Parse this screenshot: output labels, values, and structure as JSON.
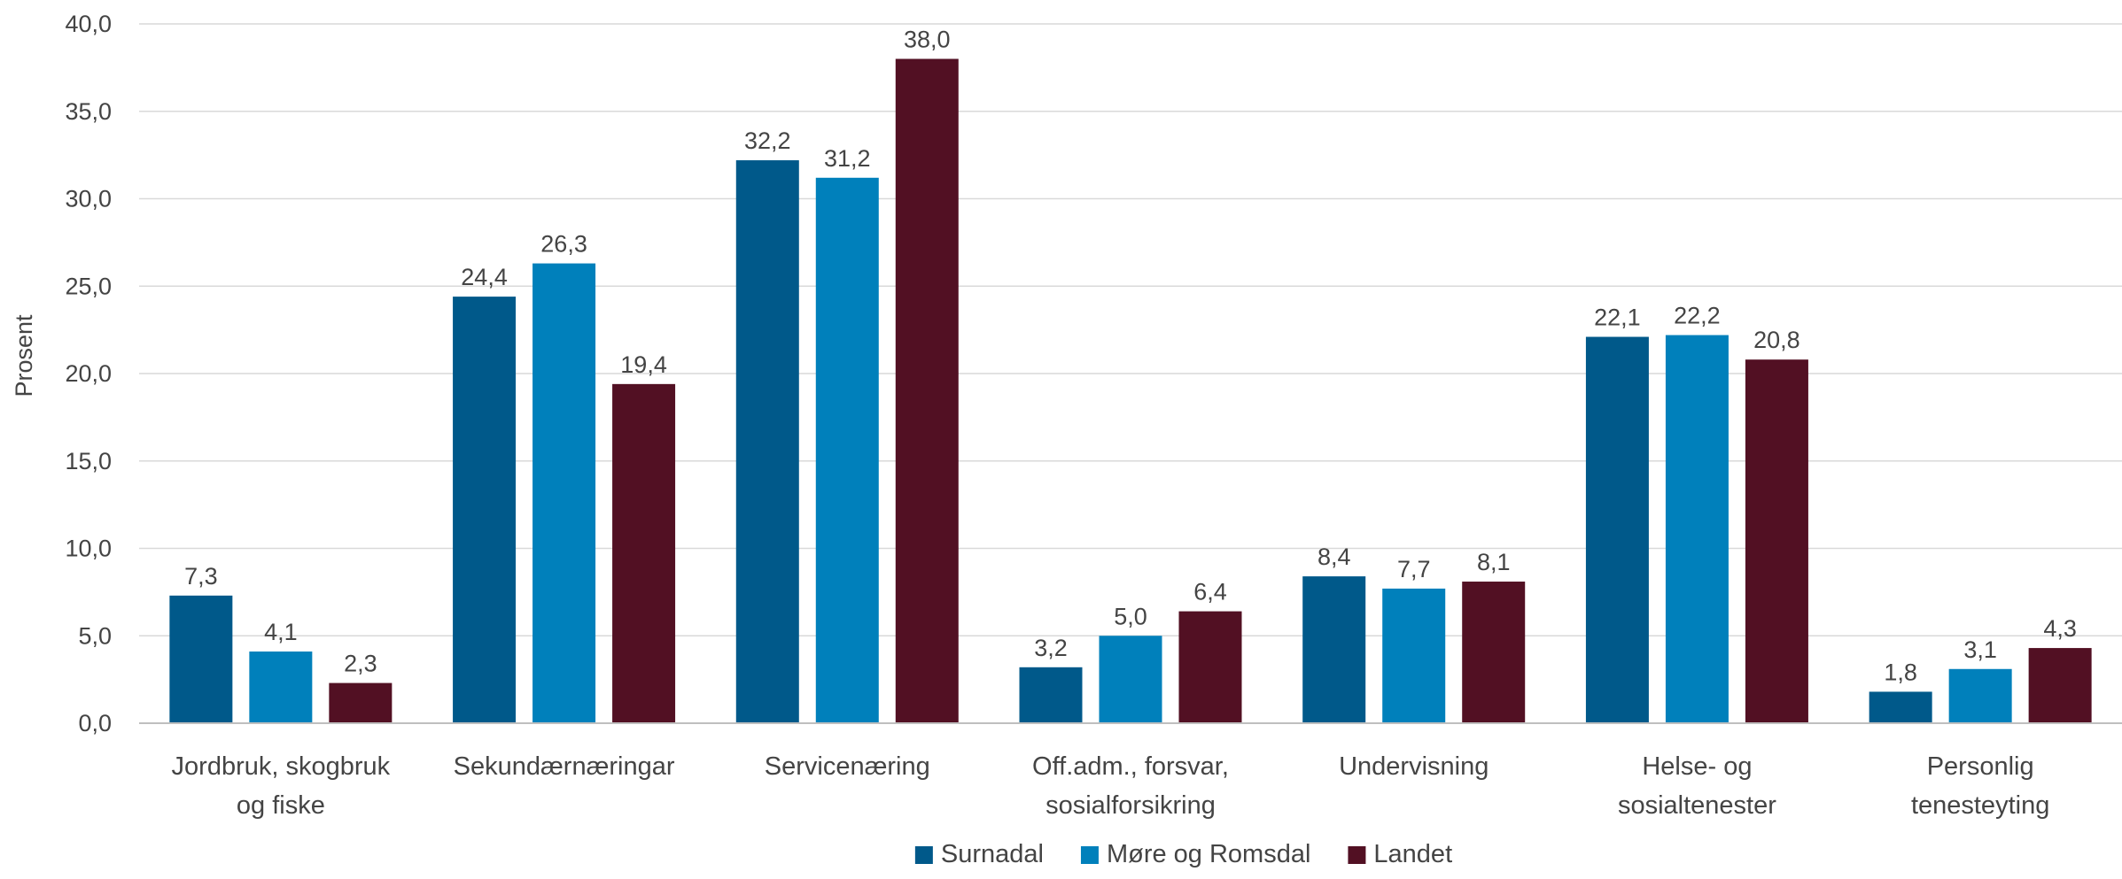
{
  "chart_data": {
    "type": "bar",
    "title": "",
    "xlabel": "",
    "ylabel": "Prosent",
    "ylim": [
      0,
      40
    ],
    "ytick_step": 5,
    "ytick_labels": [
      "0,0",
      "5,0",
      "10,0",
      "15,0",
      "20,0",
      "25,0",
      "30,0",
      "35,0",
      "40,0"
    ],
    "grid": true,
    "legend_position": "bottom",
    "categories": [
      [
        "Jordbruk, skogbruk",
        "og fiske"
      ],
      [
        "Sekundærnæringar"
      ],
      [
        "Servicenæring"
      ],
      [
        "Off.adm., forsvar,",
        "sosialforsikring"
      ],
      [
        "Undervisning"
      ],
      [
        "Helse- og",
        "sosialtenester"
      ],
      [
        "Personlig",
        "tenesteyting"
      ]
    ],
    "series": [
      {
        "name": "Surnadal",
        "color": "#00598a",
        "values": [
          7.3,
          24.4,
          32.2,
          3.2,
          8.4,
          22.1,
          1.8
        ],
        "labels": [
          "7,3",
          "24,4",
          "32,2",
          "3,2",
          "8,4",
          "22,1",
          "1,8"
        ]
      },
      {
        "name": "Møre og Romsdal",
        "color": "#0080bb",
        "values": [
          4.1,
          26.3,
          31.2,
          5.0,
          7.7,
          22.2,
          3.1
        ],
        "labels": [
          "4,1",
          "26,3",
          "31,2",
          "5,0",
          "7,7",
          "22,2",
          "3,1"
        ]
      },
      {
        "name": "Landet",
        "color": "#521023",
        "values": [
          2.3,
          19.4,
          38.0,
          6.4,
          8.1,
          20.8,
          4.3
        ],
        "labels": [
          "2,3",
          "19,4",
          "38,0",
          "6,4",
          "8,1",
          "20,8",
          "4,3"
        ]
      }
    ]
  }
}
